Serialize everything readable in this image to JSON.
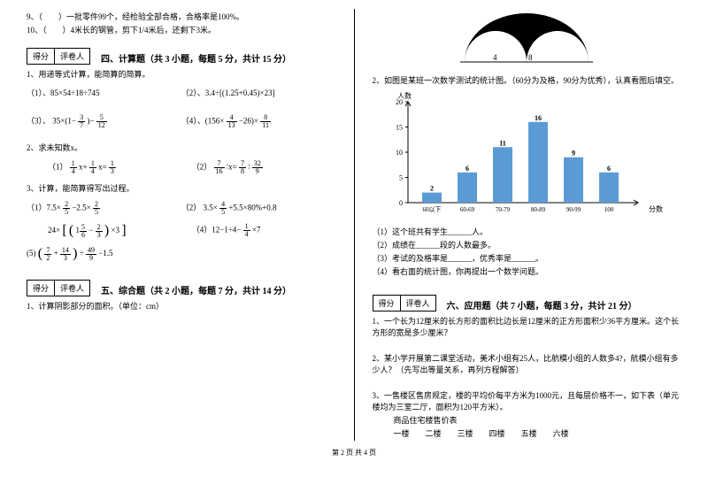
{
  "left": {
    "q9": "9、（　　）一批零件99个，经检验全部合格，合格率是100%。",
    "q10": "10、（　　）4米长的钢管，剪下1/4米后，还剩下3米。",
    "score_a": "得分",
    "score_b": "评卷人",
    "section4_title": "四、计算题（共 3 小题，每题 5 分，共计 15 分）",
    "calc1_head": "1、用递等式计算，能简算的简算。",
    "calc1_1": "（1）、85×54÷18÷745",
    "calc1_2": "（2）、3.4÷[(1.25+0.45)×23]",
    "calc1_3_pre": "（3）、 35×(1−",
    "calc1_3_mid": ")−",
    "calc1_4_pre": "（4）、(156×",
    "calc1_4_mid": "−26)×",
    "calc2_head": "2、求未知数x。",
    "calc2_1_pre": "（1） ",
    "calc2_1_mid": "x+",
    "calc2_1_end": "x=",
    "calc2_2_pre": "（2） ",
    "calc2_2_mid": "∶x=",
    "calc2_2_end": "∶",
    "calc3_head": "3、计算，能简算得写出过程。",
    "c3_1_pre": "（1）7.5×",
    "c3_1_mid": "−2.5×",
    "c3_2_pre": "（2） 3.5×",
    "c3_2_mid": "+5.5×80%+0.8",
    "c3_3_pre": " 24×",
    "c3_3_b1": "[",
    "c3_3_p1": "(",
    "c3_3_minus": "−",
    "c3_3_p2": ")",
    "c3_3_x3": "×3",
    "c3_3_b2": "]",
    "c3_4_pre": "（4）12−1÷4−",
    "c3_4_end": "×7",
    "c3_5_p1": "(",
    "c3_5_plus": "+",
    "c3_5_p2": ")",
    "c3_5_div": "÷",
    "c3_5_min": "−1.5",
    "section5_title": "五、综合题（共 2 小题，每题 7 分，共计 14 分）",
    "zh1": "1、计算阴影部分的面积。（单位：cm）"
  },
  "right": {
    "arc_label_4": "4",
    "arc_label_8": "8",
    "q2": "2、如图是某班一次数学测试的统计图。（60分为及格，90分为优秀），认真看图后填空。",
    "chart": {
      "y_title": "人数",
      "x_title": "分数",
      "categories": [
        "60以下",
        "60-69",
        "70-79",
        "80-89",
        "90-99",
        "100"
      ],
      "values": [
        2,
        6,
        11,
        16,
        9,
        6
      ],
      "y_ticks": [
        0,
        5,
        10,
        15,
        20
      ],
      "y_max": 20,
      "bar_color": "#5b9bd5",
      "bg": "#ffffff",
      "axis_color": "#000000"
    },
    "sub1": "（1）这个班共有学生______人。",
    "sub2": "（2）成绩在______段的人数最多。",
    "sub3": "（3）考试的及格率是______，优秀率是______。",
    "sub4": "（4）看右面的统计图，你再提出一个数学问题。",
    "score_a": "得分",
    "score_b": "评卷人",
    "section6_title": "六、应用题（共 7 小题，每题 3 分，共计 21 分）",
    "app1": "1、一个长为12厘米的长方形的面积比边长是12厘米的正方形面积少36平方厘米。这个长方形的宽是多少厘米？",
    "app2": "2、某小学开展第二课堂活动，美术小组有25人，比航模小组的人数多4?，航模小组有多少人？（先写出等量关系，再列方程解答）",
    "app3_a": "3、一售楼区售房规定，楼的平均价每平方米为1000元，且每层价格不一，如下表（单元楼均为三室二厅，面积为120平方米）。",
    "app3_b": "商品住宅楼售价表",
    "floors": [
      "一楼",
      "二楼",
      "三楼",
      "四楼",
      "五楼",
      "六楼"
    ]
  },
  "footer": "第 2 页  共 4 页"
}
